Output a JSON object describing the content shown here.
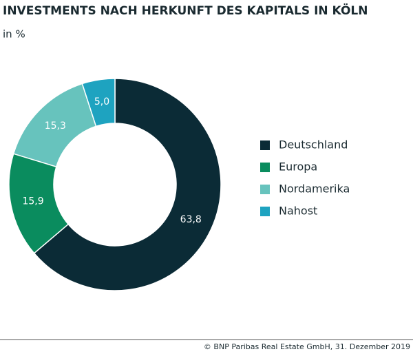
{
  "chart_data": {
    "type": "donut",
    "title": "INVESTMENTS NACH HERKUNFT DES KAPITALS IN KÖLN",
    "subtitle": "in %",
    "categories": [
      "Deutschland",
      "Europa",
      "Nordamerika",
      "Nahost"
    ],
    "values": [
      63.8,
      15.9,
      15.3,
      5.0
    ],
    "value_labels": [
      "63,8",
      "15,9",
      "15,3",
      "5,0"
    ],
    "colors": [
      "#0b2b36",
      "#0a8c5e",
      "#67c3bd",
      "#1ea3c0"
    ],
    "legend": "right",
    "source": "© BNP Paribas Real Estate GmbH, 31. Dezember 2019"
  }
}
